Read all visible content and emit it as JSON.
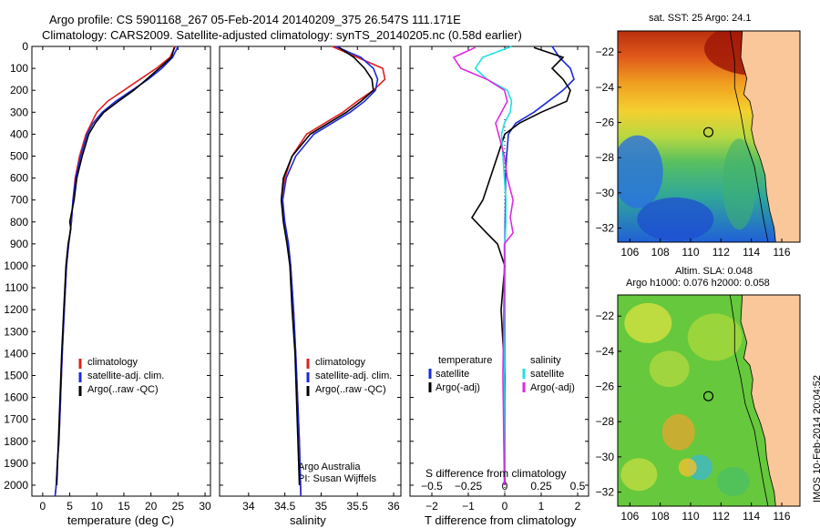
{
  "header": {
    "line1": "Argo profile: CS 5901168_267 05-Feb-2014 20140209_375 26.547S 111.171E",
    "line2": "Climatology: CARS2009. Satellite-adjusted climatology: synTS_20140205.nc (0.58d earlier)"
  },
  "colors": {
    "climatology": "#dd2222",
    "satellite": "#1a2ad8",
    "argo": "#000000",
    "sal_satellite": "#22e0e0",
    "sal_argo": "#e02ae0",
    "land": "#f9c79a"
  },
  "depth_axis": {
    "ticks": [
      "0",
      "100",
      "200",
      "300",
      "400",
      "500",
      "600",
      "700",
      "800",
      "900",
      "1000",
      "1100",
      "1200",
      "1300",
      "1400",
      "1500",
      "1600",
      "1700",
      "1800",
      "1900",
      "2000"
    ],
    "range": [
      0,
      2050
    ]
  },
  "temperature_panel": {
    "xlabel": "temperature (deg C)",
    "xlim": [
      -2,
      31
    ],
    "xticks": [
      "0",
      "5",
      "10",
      "15",
      "20",
      "25",
      "30"
    ],
    "legend": [
      "climatology",
      "satellite-adj. clim.",
      "Argo(..raw -QC)"
    ]
  },
  "salinity_panel": {
    "xlabel": "salinity",
    "xlim": [
      33.6,
      36.1
    ],
    "xticks": [
      "34",
      "34.5",
      "35",
      "35.5",
      "36"
    ],
    "legend": [
      "climatology",
      "satellite-adj. clim.",
      "Argo(..raw -QC)"
    ],
    "note1": "Argo Australia",
    "note2": "PI: Susan Wijffels"
  },
  "difference_panel": {
    "xlabel": "T difference from climatology",
    "s_label": "S difference from climatology",
    "xlim": [
      -2.6,
      2.3
    ],
    "xticks_t": [
      "−2",
      "−1",
      "0",
      "1",
      "2"
    ],
    "xticks_s": [
      "−0.5",
      "−0.25",
      "0",
      "0.25",
      "0.5"
    ],
    "legend_t_title": "temperature",
    "legend_s_title": "salinity",
    "legend_t": [
      "satellite",
      "Argo(-adj)"
    ],
    "legend_s": [
      "satellite",
      "Argo(-adj)"
    ]
  },
  "map_sst": {
    "title": "sat. SST: 25 Argo: 24.1",
    "xticks": [
      "106",
      "108",
      "110",
      "112",
      "114",
      "116"
    ],
    "yticks": [
      "−22",
      "−24",
      "−26",
      "−28",
      "−30",
      "−32"
    ],
    "lon": [
      105.2,
      117.2
    ],
    "lat": [
      -32.8,
      -20.8
    ],
    "argo_marker": {
      "lon": 111.17,
      "lat": -26.55
    }
  },
  "map_sla": {
    "title1": "Altim. SLA: 0.048",
    "title2": "Argo h1000: 0.076 h2000: 0.058",
    "xticks": [
      "106",
      "108",
      "110",
      "112",
      "114",
      "116"
    ],
    "yticks": [
      "−22",
      "−24",
      "−26",
      "−28",
      "−30",
      "−32"
    ],
    "lon": [
      105.2,
      117.2
    ],
    "lat": [
      -32.8,
      -20.8
    ],
    "argo_marker": {
      "lon": 111.17,
      "lat": -26.55
    }
  },
  "side_text": "IMOS 10-Feb-2014 20:04:52",
  "chart_data": [
    {
      "type": "line",
      "title": "",
      "xlabel": "temperature (deg C)",
      "ylabel": "",
      "xlim": [
        -2,
        31
      ],
      "ylim": [
        2050,
        0
      ],
      "series": [
        {
          "name": "climatology",
          "x": [
            24.5,
            23.5,
            21,
            18,
            15,
            12,
            10,
            9,
            8,
            6.8,
            6,
            5.6,
            5.3,
            4.8,
            4.4,
            4.0,
            3.6,
            3.3,
            3.0,
            2.7,
            2.5,
            2.3
          ],
          "y": [
            0,
            50,
            100,
            150,
            200,
            250,
            300,
            350,
            400,
            500,
            600,
            700,
            800,
            900,
            1000,
            1200,
            1400,
            1600,
            1800,
            1900,
            2000,
            2050
          ]
        },
        {
          "name": "satellite-adj. clim.",
          "x": [
            25,
            24,
            22,
            19.5,
            16.5,
            13.5,
            11,
            9.3,
            8.2,
            7,
            6.1,
            5.6,
            5.3,
            4.8,
            4.4,
            4.0,
            3.6,
            3.3,
            3.0,
            2.7,
            2.5,
            2.3
          ],
          "y": [
            0,
            50,
            100,
            150,
            200,
            250,
            300,
            350,
            400,
            500,
            600,
            700,
            800,
            900,
            1000,
            1200,
            1400,
            1600,
            1800,
            1900,
            2000,
            2050
          ]
        },
        {
          "name": "Argo(..raw -QC)",
          "x": [
            24.3,
            23.8,
            21.5,
            19.2,
            16.8,
            14,
            11.3,
            9.7,
            8.5,
            7.3,
            6.3,
            5.8,
            5.0,
            5.2,
            4.7,
            4.3,
            3.9,
            3.5,
            3.2,
            2.9,
            2.6
          ],
          "y": [
            5,
            50,
            100,
            150,
            200,
            250,
            300,
            350,
            400,
            500,
            600,
            700,
            800,
            830,
            900,
            1000,
            1200,
            1400,
            1600,
            1800,
            2000
          ]
        }
      ]
    },
    {
      "type": "line",
      "title": "",
      "xlabel": "salinity",
      "ylabel": "",
      "xlim": [
        33.6,
        36.1
      ],
      "ylim": [
        2050,
        0
      ],
      "series": [
        {
          "name": "climatology",
          "x": [
            35.15,
            35.5,
            35.85,
            35.88,
            35.72,
            35.5,
            35.3,
            35.05,
            34.8,
            34.6,
            34.5,
            34.45,
            34.5,
            34.55,
            34.58,
            34.62,
            34.65,
            34.7,
            34.72
          ],
          "y": [
            0,
            50,
            100,
            150,
            200,
            250,
            300,
            350,
            400,
            500,
            600,
            700,
            800,
            900,
            1000,
            1200,
            1400,
            1800,
            2050
          ]
        },
        {
          "name": "satellite-adj. clim.",
          "x": [
            35.2,
            35.55,
            35.72,
            35.78,
            35.75,
            35.6,
            35.4,
            35.15,
            34.9,
            34.65,
            34.52,
            34.47,
            34.5,
            34.55,
            34.58,
            34.62,
            34.65,
            34.7,
            34.72
          ],
          "y": [
            0,
            50,
            100,
            150,
            200,
            250,
            300,
            350,
            400,
            500,
            600,
            700,
            800,
            900,
            1000,
            1200,
            1400,
            1800,
            2050
          ]
        },
        {
          "name": "Argo(..raw -QC)",
          "x": [
            35.25,
            35.45,
            35.6,
            35.7,
            35.72,
            35.55,
            35.35,
            35.1,
            34.85,
            34.6,
            34.48,
            34.45,
            34.48,
            34.53,
            34.57,
            34.6,
            34.64,
            34.68,
            34.7
          ],
          "y": [
            5,
            50,
            100,
            150,
            200,
            250,
            300,
            350,
            400,
            500,
            600,
            700,
            800,
            900,
            1000,
            1200,
            1400,
            1800,
            2000
          ]
        }
      ]
    },
    {
      "type": "line",
      "title": "",
      "xlabel": "T difference from climatology",
      "ylabel": "",
      "xlim": [
        -2.6,
        2.3
      ],
      "ylim": [
        2050,
        0
      ],
      "series": [
        {
          "name": "satellite",
          "x": [
            1.3,
            1.5,
            1.8,
            1.9,
            1.6,
            1.2,
            0.8,
            0.3,
            0.1,
            0.05,
            0.02,
            0.02,
            0.01,
            0,
            0,
            0,
            0,
            0
          ],
          "y": [
            0,
            50,
            100,
            150,
            200,
            250,
            300,
            350,
            400,
            500,
            600,
            700,
            800,
            1000,
            1200,
            1500,
            1800,
            2000
          ]
        },
        {
          "name": "Argo(-adj)",
          "x": [
            0.8,
            1.6,
            1.3,
            1.6,
            1.8,
            1.7,
            1.0,
            0.4,
            0.0,
            -0.2,
            -0.4,
            -0.6,
            -0.9,
            -0.5,
            -0.2,
            0.0,
            -0.1,
            0.0,
            -0.02,
            0
          ],
          "y": [
            5,
            50,
            100,
            150,
            200,
            250,
            300,
            350,
            400,
            500,
            600,
            700,
            780,
            850,
            900,
            1000,
            1200,
            1500,
            1800,
            2000
          ]
        }
      ]
    },
    {
      "type": "line",
      "title": "",
      "xlabel": "S difference from climatology",
      "ylabel": "",
      "xlim": [
        -0.65,
        0.58
      ],
      "ylim": [
        2050,
        0
      ],
      "series": [
        {
          "name": "satellite",
          "x": [
            0.05,
            -0.15,
            -0.2,
            -0.12,
            0.02,
            0.05,
            0.04,
            0.0,
            -0.02,
            -0.01,
            0.0,
            0.01,
            0.01,
            0.0,
            0.0,
            0.0,
            0.0
          ],
          "y": [
            0,
            50,
            100,
            150,
            200,
            250,
            300,
            350,
            400,
            500,
            600,
            700,
            800,
            1000,
            1200,
            1500,
            2000
          ]
        },
        {
          "name": "Argo(-adj)",
          "x": [
            -0.2,
            -0.35,
            -0.3,
            -0.12,
            0.0,
            0.02,
            -0.02,
            -0.06,
            -0.04,
            0.0,
            0.02,
            0.06,
            0.04,
            0.06,
            0.0,
            0.0,
            -0.01,
            0.0
          ],
          "y": [
            5,
            50,
            100,
            150,
            200,
            250,
            300,
            350,
            400,
            500,
            600,
            700,
            780,
            850,
            900,
            1000,
            1500,
            2000
          ]
        }
      ]
    }
  ]
}
